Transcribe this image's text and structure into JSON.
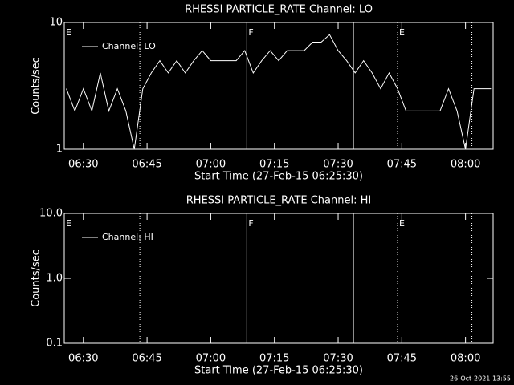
{
  "chart_data": [
    {
      "type": "line",
      "title": "RHESSI PARTICLE_RATE Channel: LO",
      "x_label": "Start Time (27-Feb-15 06:25:30)",
      "y_label": "Counts/sec",
      "log_y": true,
      "xlim": [
        385.5,
        486.5
      ],
      "ylim": [
        1,
        10
      ],
      "yticks": [
        1,
        10
      ],
      "xticks": [
        {
          "value": 390,
          "label": "06:30"
        },
        {
          "value": 405,
          "label": "06:45"
        },
        {
          "value": 420,
          "label": "07:00"
        },
        {
          "value": 435,
          "label": "07:15"
        },
        {
          "value": 450,
          "label": "07:30"
        },
        {
          "value": 465,
          "label": "07:45"
        },
        {
          "value": 480,
          "label": "08:00"
        }
      ],
      "legend": "upper left",
      "x": [
        386,
        388,
        390,
        392,
        394,
        396,
        398,
        400,
        402,
        404,
        406,
        408,
        410,
        412,
        414,
        416,
        418,
        420,
        422,
        424,
        426,
        428,
        430,
        432,
        434,
        436,
        438,
        440,
        442,
        444,
        446,
        448,
        450,
        452,
        454,
        456,
        458,
        460,
        462,
        464,
        466,
        468,
        470,
        472,
        474,
        476,
        478,
        480,
        482,
        484,
        486
      ],
      "series": [
        {
          "name": "Channel: LO",
          "color": "#ffffff",
          "values": [
            3,
            2,
            3,
            2,
            4,
            2,
            3,
            2,
            1,
            3,
            4,
            5,
            4,
            5,
            4,
            5,
            6,
            5,
            5,
            5,
            5,
            6,
            4,
            5,
            6,
            5,
            6,
            6,
            6,
            7,
            7,
            8,
            6,
            5,
            4,
            5,
            4,
            3,
            4,
            3,
            2,
            2,
            2,
            2,
            2,
            3,
            2,
            1,
            3,
            3,
            3
          ]
        }
      ],
      "markers": [
        {
          "x": 403.3,
          "style": "dotted"
        },
        {
          "x": 428.5,
          "style": "solid"
        },
        {
          "x": 453.6,
          "style": "solid"
        },
        {
          "x": 464.0,
          "style": "dotted"
        },
        {
          "x": 481.5,
          "style": "dotted"
        }
      ],
      "annotations": [
        {
          "text": "E",
          "x": 385.5
        },
        {
          "text": "F",
          "x": 428.5
        },
        {
          "text": "E",
          "x": 464.0
        }
      ]
    },
    {
      "type": "line",
      "title": "RHESSI PARTICLE_RATE Channel: HI",
      "x_label": "Start Time (27-Feb-15 06:25:30)",
      "y_label": "Counts/sec",
      "log_y": true,
      "xlim": [
        385.5,
        486.5
      ],
      "ylim": [
        0.1,
        10
      ],
      "yticks": [
        0.1,
        {
          "value": 1,
          "label": "1.0"
        },
        {
          "value": 10,
          "label": "10.0"
        }
      ],
      "xticks": [
        {
          "value": 390,
          "label": "06:30"
        },
        {
          "value": 405,
          "label": "06:45"
        },
        {
          "value": 420,
          "label": "07:00"
        },
        {
          "value": 435,
          "label": "07:15"
        },
        {
          "value": 450,
          "label": "07:30"
        },
        {
          "value": 465,
          "label": "07:45"
        },
        {
          "value": 480,
          "label": "08:00"
        }
      ],
      "legend": "upper left",
      "series": [
        {
          "name": "Channel: HI",
          "color": "#ffffff"
        }
      ],
      "markers": [
        {
          "x": 403.3,
          "style": "dotted"
        },
        {
          "x": 428.5,
          "style": "solid"
        },
        {
          "x": 453.6,
          "style": "solid"
        },
        {
          "x": 464.0,
          "style": "dotted"
        },
        {
          "x": 481.5,
          "style": "dotted"
        }
      ],
      "annotations": [
        {
          "text": "E",
          "x": 385.5
        },
        {
          "text": "F",
          "x": 428.5
        },
        {
          "text": "E",
          "x": 464.0
        }
      ]
    }
  ],
  "footer": "26-Oct-2021 13:55"
}
